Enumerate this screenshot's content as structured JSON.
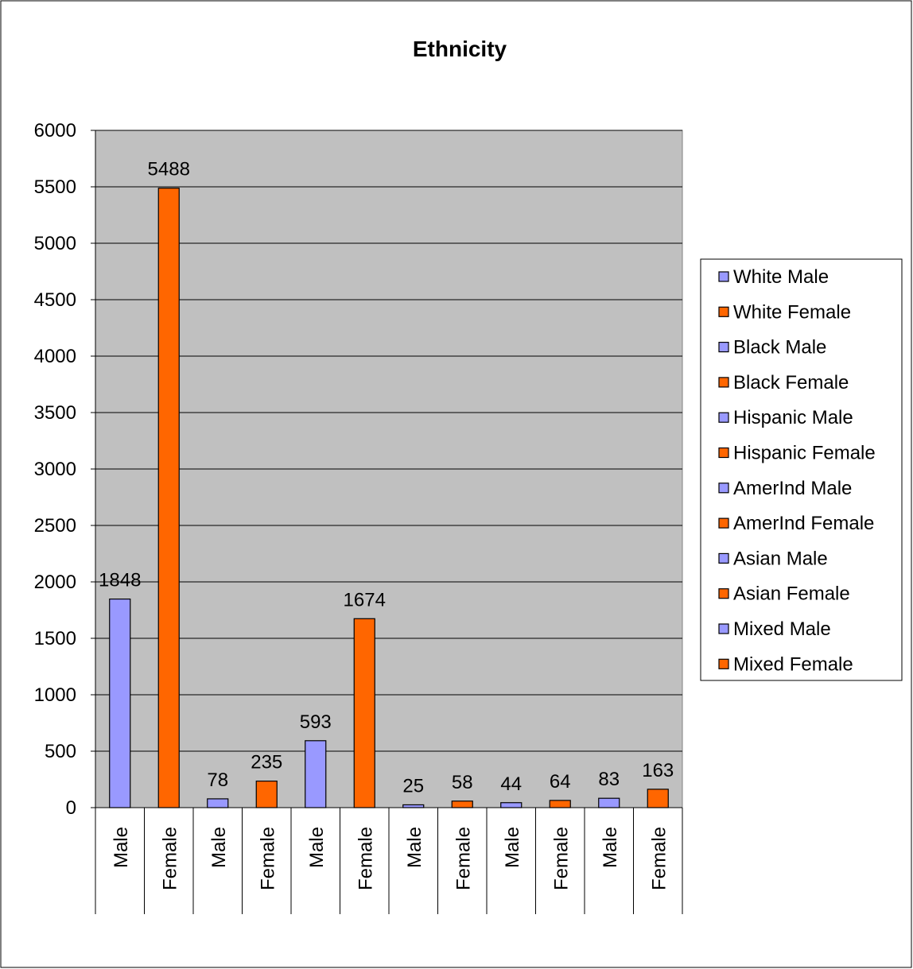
{
  "chart_data": {
    "type": "bar",
    "title": "Ethnicity",
    "ylim": [
      0,
      6000
    ],
    "yticks": [
      0,
      500,
      1000,
      1500,
      2000,
      2500,
      3000,
      3500,
      4000,
      4500,
      5000,
      5500,
      6000
    ],
    "grid": true,
    "legend_position": "right",
    "plot_background": "#C0C0C0",
    "categories": [
      "Male",
      "Female",
      "Male",
      "Female",
      "Male",
      "Female",
      "Male",
      "Female",
      "Male",
      "Female",
      "Male",
      "Female"
    ],
    "series": [
      {
        "name": "White Male",
        "values": [
          1848,
          0,
          0,
          0,
          0,
          0,
          0,
          0,
          0,
          0,
          0,
          0
        ],
        "color": "#9999FF"
      },
      {
        "name": "White Female",
        "values": [
          0,
          5488,
          0,
          0,
          0,
          0,
          0,
          0,
          0,
          0,
          0,
          0
        ],
        "color": "#FF6600"
      },
      {
        "name": "Black Male",
        "values": [
          0,
          0,
          78,
          0,
          0,
          0,
          0,
          0,
          0,
          0,
          0,
          0
        ],
        "color": "#9999FF"
      },
      {
        "name": "Black Female",
        "values": [
          0,
          0,
          0,
          235,
          0,
          0,
          0,
          0,
          0,
          0,
          0,
          0
        ],
        "color": "#FF6600"
      },
      {
        "name": "Hispanic Male",
        "values": [
          0,
          0,
          0,
          0,
          593,
          0,
          0,
          0,
          0,
          0,
          0,
          0
        ],
        "color": "#9999FF"
      },
      {
        "name": "Hispanic Female",
        "values": [
          0,
          0,
          0,
          0,
          0,
          1674,
          0,
          0,
          0,
          0,
          0,
          0
        ],
        "color": "#FF6600"
      },
      {
        "name": "AmerInd Male",
        "values": [
          0,
          0,
          0,
          0,
          0,
          0,
          25,
          0,
          0,
          0,
          0,
          0
        ],
        "color": "#9999FF"
      },
      {
        "name": "AmerInd Female",
        "values": [
          0,
          0,
          0,
          0,
          0,
          0,
          0,
          58,
          0,
          0,
          0,
          0
        ],
        "color": "#FF6600"
      },
      {
        "name": "Asian Male",
        "values": [
          0,
          0,
          0,
          0,
          0,
          0,
          0,
          0,
          44,
          0,
          0,
          0
        ],
        "color": "#9999FF"
      },
      {
        "name": "Asian Female",
        "values": [
          0,
          0,
          0,
          0,
          0,
          0,
          0,
          0,
          0,
          64,
          0,
          0
        ],
        "color": "#FF6600"
      },
      {
        "name": "Mixed Male",
        "values": [
          0,
          0,
          0,
          0,
          0,
          0,
          0,
          0,
          0,
          0,
          83,
          0
        ],
        "color": "#9999FF"
      },
      {
        "name": "Mixed Female",
        "values": [
          0,
          0,
          0,
          0,
          0,
          0,
          0,
          0,
          0,
          0,
          0,
          163
        ],
        "color": "#FF6600"
      }
    ]
  }
}
